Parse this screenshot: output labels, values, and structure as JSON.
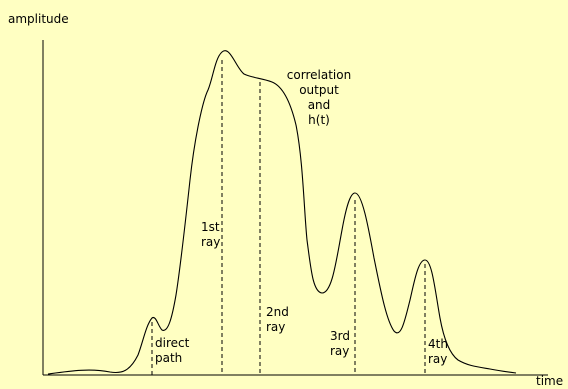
{
  "axes": {
    "y_label": "amplitude",
    "x_label": "time"
  },
  "curve": {
    "label_lines": [
      "correlation",
      "output",
      "and",
      "h(t)"
    ]
  },
  "markers": [
    {
      "lines": [
        "direct",
        "path"
      ]
    },
    {
      "lines": [
        "1st",
        "ray"
      ]
    },
    {
      "lines": [
        "2nd",
        "ray"
      ]
    },
    {
      "lines": [
        "3rd",
        "ray"
      ]
    },
    {
      "lines": [
        "4th",
        "ray"
      ]
    }
  ],
  "colors": {
    "background": "#ffffc2",
    "ink": "#000000"
  }
}
